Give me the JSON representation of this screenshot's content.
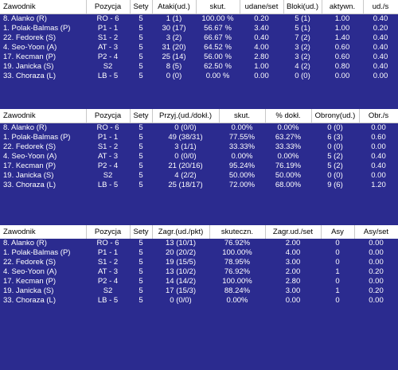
{
  "players": [
    {
      "name": "8. Alanko (R)",
      "position": "RO - 6",
      "sets": "5"
    },
    {
      "name": "1. Polak-Balmas (P)",
      "position": "P1 - 1",
      "sets": "5"
    },
    {
      "name": "22. Fedorek (S)",
      "position": "S1 - 2",
      "sets": "5"
    },
    {
      "name": "4. Seo-Yoon (A)",
      "position": "AT - 3",
      "sets": "5"
    },
    {
      "name": "17. Kecman (P)",
      "position": "P2 - 4",
      "sets": "5"
    },
    {
      "name": "19. Janicka (S)",
      "position": "S2",
      "sets": "5"
    },
    {
      "name": "33. Choraza (L)",
      "position": "LB - 5",
      "sets": "5"
    }
  ],
  "tables": [
    {
      "headers": [
        "Zawodnik",
        "Pozycja",
        "Sety",
        "Ataki(ud.)",
        "skut.",
        "udane/set",
        "Bloki(ud.)",
        "aktywn.",
        "ud./s"
      ],
      "rows": [
        [
          "1 (1)",
          "100.00 %",
          "0.20",
          "5 (1)",
          "1.00",
          "0.40"
        ],
        [
          "30 (17)",
          "56.67 %",
          "3.40",
          "5 (1)",
          "1.00",
          "0.20"
        ],
        [
          "3 (2)",
          "66.67 %",
          "0.40",
          "7 (2)",
          "1.40",
          "0.40"
        ],
        [
          "31 (20)",
          "64.52 %",
          "4.00",
          "3 (2)",
          "0.60",
          "0.40"
        ],
        [
          "25 (14)",
          "56.00 %",
          "2.80",
          "3 (2)",
          "0.60",
          "0.40"
        ],
        [
          "8 (5)",
          "62.50 %",
          "1.00",
          "4 (2)",
          "0.80",
          "0.40"
        ],
        [
          "0 (0)",
          "0.00 %",
          "0.00",
          "0 (0)",
          "0.00",
          "0.00"
        ]
      ]
    },
    {
      "headers": [
        "Zawodnik",
        "Pozycja",
        "Sety",
        "Przyj.(ud./dokł.)",
        "skut.",
        "% dokł.",
        "Obrony(ud.)",
        "Obr./s"
      ],
      "rows": [
        [
          "0 (0/0)",
          "0.00%",
          "0.00%",
          "0 (0)",
          "0.00"
        ],
        [
          "49 (38/31)",
          "77.55%",
          "63.27%",
          "6 (3)",
          "0.60"
        ],
        [
          "3 (1/1)",
          "33.33%",
          "33.33%",
          "0 (0)",
          "0.00"
        ],
        [
          "0 (0/0)",
          "0.00%",
          "0.00%",
          "5 (2)",
          "0.40"
        ],
        [
          "21 (20/16)",
          "95.24%",
          "76.19%",
          "5 (2)",
          "0.40"
        ],
        [
          "4 (2/2)",
          "50.00%",
          "50.00%",
          "0 (0)",
          "0.00"
        ],
        [
          "25 (18/17)",
          "72.00%",
          "68.00%",
          "9 (6)",
          "1.20"
        ]
      ]
    },
    {
      "headers": [
        "Zawodnik",
        "Pozycja",
        "Sety",
        "Zagr.(ud./pkt)",
        "skuteczn.",
        "Zagr.ud./set",
        "Asy",
        "Asy/set"
      ],
      "rows": [
        [
          "13 (10/1)",
          "76.92%",
          "2.00",
          "0",
          "0.00"
        ],
        [
          "20 (20/2)",
          "100.00%",
          "4.00",
          "0",
          "0.00"
        ],
        [
          "19 (15/5)",
          "78.95%",
          "3.00",
          "0",
          "0.00"
        ],
        [
          "13 (10/2)",
          "76.92%",
          "2.00",
          "1",
          "0.20"
        ],
        [
          "14 (14/2)",
          "100.00%",
          "2.80",
          "0",
          "0.00"
        ],
        [
          "17 (15/3)",
          "88.24%",
          "3.00",
          "1",
          "0.20"
        ],
        [
          "0 (0/0)",
          "0.00%",
          "0.00",
          "0",
          "0.00"
        ]
      ]
    }
  ]
}
